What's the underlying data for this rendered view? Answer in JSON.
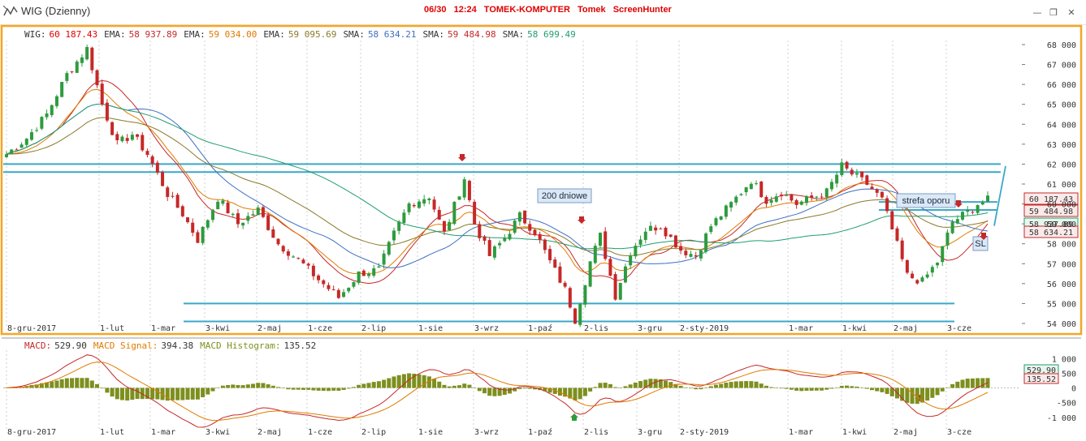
{
  "window": {
    "title": "WIG (Dzienny)",
    "center_text": [
      "06/30",
      "12:24",
      "TOMEK-KOMPUTER",
      "Tomek",
      "ScreenHunter"
    ]
  },
  "colors": {
    "frame": "#f5a623",
    "up": "#2e9b3e",
    "down": "#c62828",
    "ema58": "#c62828",
    "ema59": "#e07b00",
    "ema59b": "#8a7a2a",
    "sma58": "#3d6fc4",
    "sma59": "#c62828",
    "sma58b": "#1f9e6e",
    "lines": "#3aa8c8",
    "macd": "#c62828",
    "signal": "#e07b00",
    "hist": "#7d8f1e"
  },
  "chart_data": [
    {
      "type": "candlestick",
      "title": "WIG (Dzienny)",
      "legend": [
        {
          "name": "WIG:",
          "value": "60 187.43",
          "color": "#e00000"
        },
        {
          "name": "EMA:",
          "value": "58 937.89",
          "color": "#c62828"
        },
        {
          "name": "EMA:",
          "value": "59 034.00",
          "color": "#e07b00"
        },
        {
          "name": "EMA:",
          "value": "59 095.69",
          "color": "#8a7a2a"
        },
        {
          "name": "SMA:",
          "value": "58 634.21",
          "color": "#3d6fc4"
        },
        {
          "name": "SMA:",
          "value": "59 484.98",
          "color": "#c62828"
        },
        {
          "name": "SMA:",
          "value": "58 699.49",
          "color": "#1f9e6e"
        }
      ],
      "x_labels": [
        "8-gru-2017",
        "1-lut",
        "1-mar",
        "3-kwi",
        "2-maj",
        "1-cze",
        "2-lip",
        "1-sie",
        "3-wrz",
        "1-paź",
        "2-lis",
        "3-gru",
        "2-sty-2019",
        "1-mar",
        "1-kwi",
        "2-maj",
        "3-cze"
      ],
      "y_ticks": [
        "68 000",
        "67 000",
        "66 000",
        "65 000",
        "64 000",
        "63 000",
        "62 000",
        "61 000",
        "60 000",
        "59 000",
        "58 000",
        "57 000",
        "56 000",
        "55 000",
        "54 000"
      ],
      "ylim": [
        54000,
        68000
      ],
      "close_path": [
        [
          0,
          62500
        ],
        [
          4,
          63300
        ],
        [
          8,
          64500
        ],
        [
          12,
          66500
        ],
        [
          16,
          67800
        ],
        [
          19,
          65000
        ],
        [
          22,
          63000
        ],
        [
          25,
          63500
        ],
        [
          28,
          62500
        ],
        [
          32,
          60500
        ],
        [
          35,
          59500
        ],
        [
          38,
          58200
        ],
        [
          42,
          60300
        ],
        [
          46,
          59000
        ],
        [
          50,
          59700
        ],
        [
          54,
          58000
        ],
        [
          58,
          57200
        ],
        [
          62,
          56200
        ],
        [
          66,
          55300
        ],
        [
          70,
          56500
        ],
        [
          74,
          56700
        ],
        [
          77,
          58500
        ],
        [
          80,
          60000
        ],
        [
          84,
          60400
        ],
        [
          87,
          58500
        ],
        [
          89,
          59900
        ],
        [
          91,
          61300
        ],
        [
          93,
          59000
        ],
        [
          96,
          57400
        ],
        [
          99,
          58300
        ],
        [
          102,
          59400
        ],
        [
          105,
          58600
        ],
        [
          108,
          57100
        ],
        [
          111,
          55700
        ],
        [
          113,
          54200
        ],
        [
          116,
          57100
        ],
        [
          118,
          58400
        ],
        [
          121,
          55400
        ],
        [
          124,
          57600
        ],
        [
          127,
          58700
        ],
        [
          130,
          58900
        ],
        [
          134,
          57700
        ],
        [
          137,
          57400
        ],
        [
          140,
          58900
        ],
        [
          144,
          60000
        ],
        [
          148,
          61200
        ],
        [
          151,
          60200
        ],
        [
          154,
          60600
        ],
        [
          157,
          60000
        ],
        [
          160,
          60300
        ],
        [
          163,
          60600
        ],
        [
          166,
          61900
        ],
        [
          168,
          61500
        ],
        [
          171,
          61000
        ],
        [
          174,
          60200
        ],
        [
          176,
          58700
        ],
        [
          179,
          56400
        ],
        [
          182,
          56100
        ],
        [
          185,
          57100
        ],
        [
          188,
          59100
        ],
        [
          191,
          59600
        ],
        [
          193,
          60000
        ],
        [
          195,
          60200
        ]
      ],
      "horizontal_lines": [
        62000,
        61600,
        60100,
        59700,
        55000,
        54100
      ],
      "annotations": [
        "200 dniowe",
        "strefa oporu",
        "SL"
      ],
      "label_boxes": [
        {
          "value": "60 187.43",
          "color": "#c62828",
          "bg": "#fbeaea"
        },
        {
          "value": "59 484.98",
          "color": "#c62828",
          "bg": "#fbeaea"
        },
        {
          "value": "58 937.89",
          "color": "#1f9e6e",
          "bg": "#e8f6ee"
        },
        {
          "value": "58 634.21",
          "color": "#c62828",
          "bg": "#fbeaea"
        }
      ]
    },
    {
      "type": "bar",
      "title": "MACD",
      "legend": [
        {
          "name": "MACD:",
          "value": "529.90",
          "color": "#c62828"
        },
        {
          "name": "MACD Signal:",
          "value": "394.38",
          "color": "#e07b00"
        },
        {
          "name": "MACD Histogram:",
          "value": "135.52",
          "color": "#7d8f1e"
        }
      ],
      "y_ticks": [
        "1 000",
        "500",
        "0",
        "-500",
        "-1 000"
      ],
      "ylim": [
        -1200,
        1200
      ],
      "label_boxes": [
        {
          "value": "529.90",
          "color": "#1f9e6e",
          "bg": "#e8f6ee"
        },
        {
          "value": "135.52",
          "color": "#c62828",
          "bg": "#fbeaea"
        }
      ]
    }
  ]
}
